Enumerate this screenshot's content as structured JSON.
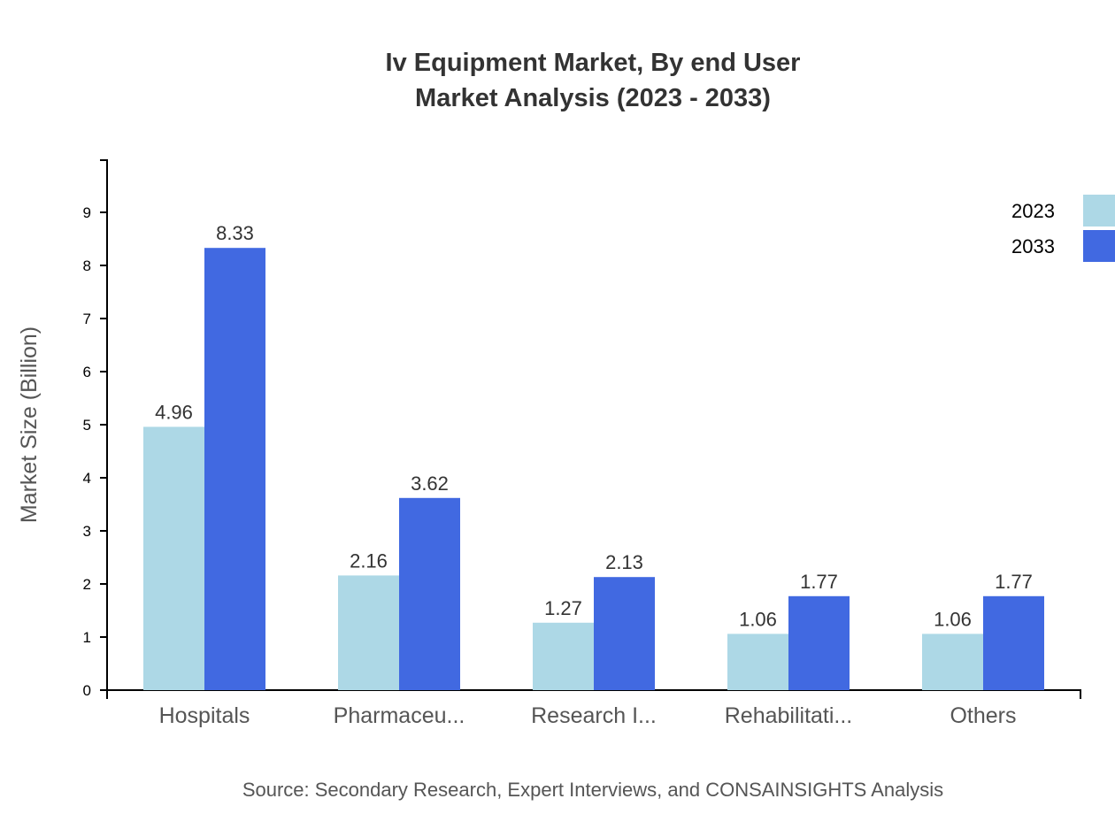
{
  "chart_data": {
    "type": "bar",
    "title": "Iv Equipment Market, By end User",
    "subtitle": "Market Analysis (2023 - 2033)",
    "xlabel": "",
    "ylabel": "Market Size (Billion)",
    "ylim": [
      0,
      10
    ],
    "yticks": [
      "0",
      "1",
      "2",
      "3",
      "4",
      "5",
      "6",
      "7",
      "8",
      "9"
    ],
    "categories": [
      "Hospitals",
      "Pharmaceu...",
      "Research I...",
      "Rehabilitati...",
      "Others"
    ],
    "series": [
      {
        "name": "2023",
        "color": "#add8e6",
        "values": [
          4.96,
          2.16,
          1.27,
          1.06,
          1.06
        ]
      },
      {
        "name": "2033",
        "color": "#4169e1",
        "values": [
          8.33,
          3.62,
          2.13,
          1.77,
          1.77
        ]
      }
    ],
    "grid": false,
    "legend_position": "top-right",
    "source": "Source: Secondary Research, Expert Interviews, and CONSAINSIGHTS Analysis"
  }
}
